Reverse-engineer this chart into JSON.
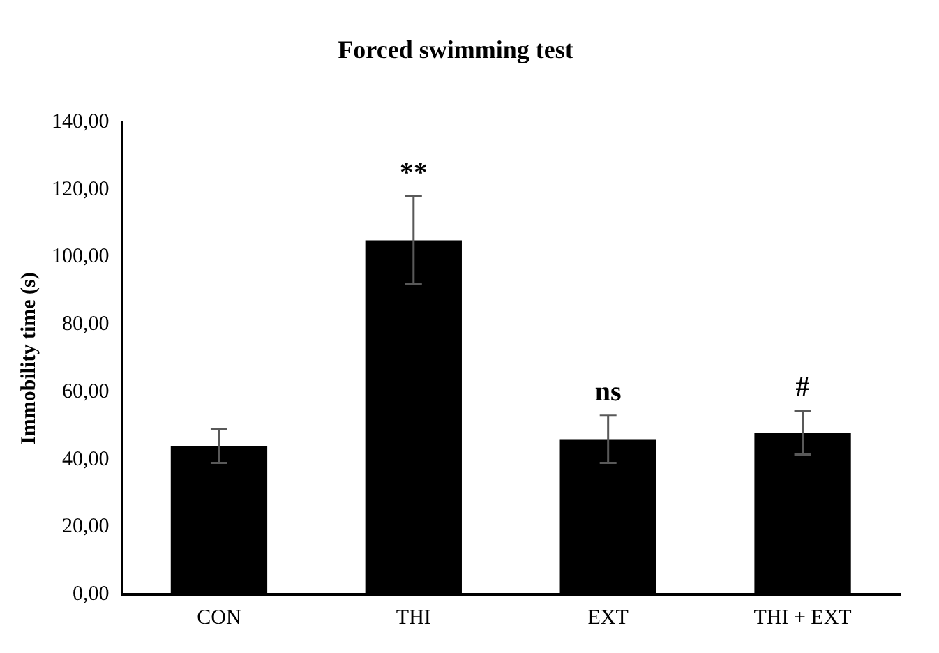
{
  "chart_data": {
    "type": "bar",
    "title": "Forced swimming test",
    "ylabel": "Immobility time (s)",
    "categories": [
      "CON",
      "THI",
      "EXT",
      "THI + EXT"
    ],
    "values": [
      44,
      105,
      46,
      48
    ],
    "errors": [
      5,
      13,
      7,
      6.5
    ],
    "color": "#000000",
    "ylim": [
      0,
      140
    ],
    "yticks": [
      {
        "value": 0,
        "label": "0,00"
      },
      {
        "value": 20,
        "label": "20,00"
      },
      {
        "value": 40,
        "label": "40,00"
      },
      {
        "value": 60,
        "label": "60,00"
      },
      {
        "value": 80,
        "label": "80,00"
      },
      {
        "value": 100,
        "label": "100,00"
      },
      {
        "value": 120,
        "label": "120,00"
      },
      {
        "value": 140,
        "label": "140,00"
      }
    ],
    "grid": false,
    "legend": false,
    "annotations": [
      {
        "text": "**",
        "x": "THI",
        "y": 118
      },
      {
        "text": "ns",
        "x": "EXT",
        "y": 53
      },
      {
        "text": "#",
        "x": "THI + EXT",
        "y": 54.5
      }
    ]
  }
}
